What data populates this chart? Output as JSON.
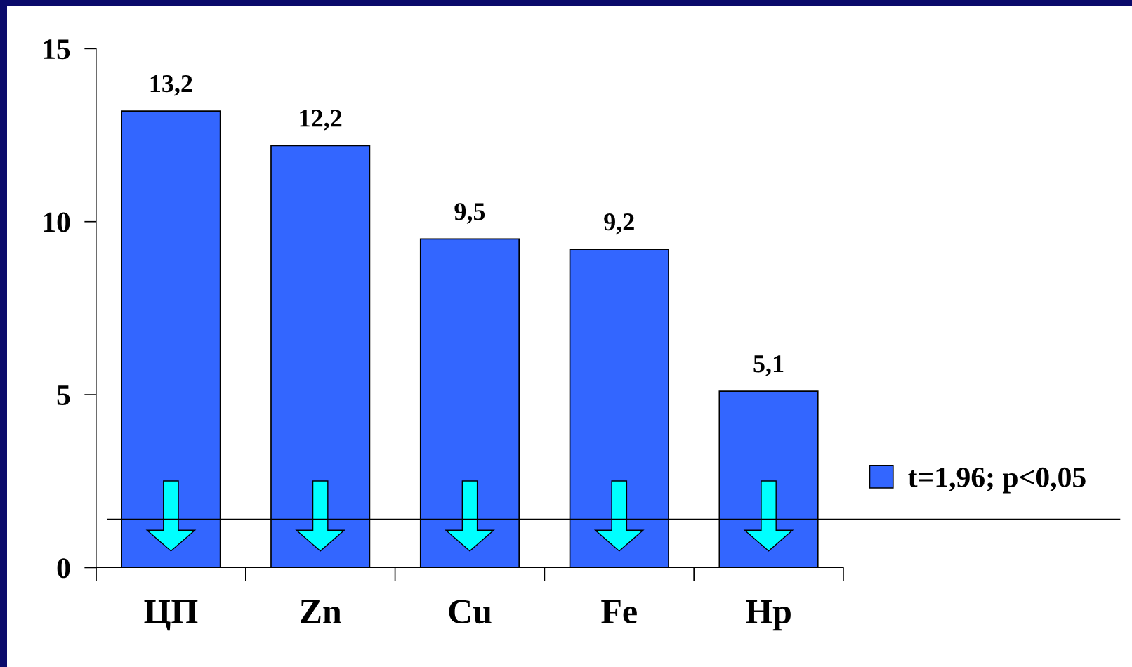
{
  "chart_data": {
    "type": "bar",
    "categories": [
      "ЦП",
      "Zn",
      "Cu",
      "Fe",
      "Hp"
    ],
    "series": [
      {
        "name": "t=1,96; p<0,05",
        "color": "#3366ff",
        "values": [
          13.2,
          12.2,
          9.5,
          9.2,
          5.1
        ],
        "value_labels": [
          "13,2",
          "12,2",
          "9,5",
          "9,2",
          "5,1"
        ]
      }
    ],
    "ylim": [
      0,
      15
    ],
    "yticks": [
      0,
      5,
      10,
      15
    ],
    "legend": "right",
    "grid": false,
    "ref_lines": [
      {
        "axis": "y",
        "value": 1.4,
        "color": "#000000"
      }
    ]
  }
}
